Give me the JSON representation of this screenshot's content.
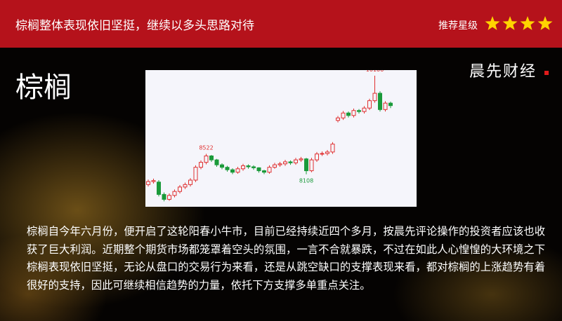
{
  "header": {
    "title": "棕榈整体表现依旧坚挺，继续以多头思路对待",
    "rating_label": "推荐星级",
    "rating": 4
  },
  "heading": "棕榈",
  "logo": "晨先财经",
  "body": "棕榈自今年六月份，便开启了这轮阳春小牛市，目前已经持续近四个多月，按晨先评论操作的投资者应该也收获了巨大利润。近期整个期货市场都笼罩着空头的氛围，一言不合就暴跌，不过在如此人心惶惶的大环境之下棕榈表现依旧坚挺，无论从盘口的交易行为来看，还是从跳空缺口的支撑表现来看，都对棕榈的上涨趋势有着很好的支持，因此可继续相信趋势的力量，依托下方支撑多单重点关注。",
  "chart_data": {
    "type": "candlestick",
    "open": [
      7900,
      7960,
      7950,
      7700,
      7600,
      7680,
      7760,
      7850,
      7900,
      7990,
      8250,
      8350,
      8480,
      8400,
      8300,
      8250,
      8200,
      8150,
      8220,
      8280,
      8260,
      8240,
      8180,
      8150,
      8250,
      8300,
      8320,
      8360,
      8340,
      8400,
      8420,
      8180,
      8400,
      8520,
      8530,
      8560,
      9200,
      9250,
      9350,
      9300,
      9400,
      9380,
      9450,
      9600,
      9750,
      9420,
      9550
    ],
    "high": [
      8000,
      8020,
      7990,
      7740,
      7720,
      7800,
      7890,
      7940,
      8030,
      8290,
      8390,
      8522,
      8500,
      8420,
      8330,
      8280,
      8230,
      8260,
      8320,
      8310,
      8290,
      8250,
      8200,
      8290,
      8340,
      8360,
      8400,
      8390,
      8440,
      8460,
      8440,
      8440,
      8560,
      8570,
      8600,
      8760,
      9290,
      9390,
      9380,
      9440,
      9430,
      9490,
      9640,
      10106,
      9790,
      9590,
      9580
    ],
    "low": [
      7860,
      7920,
      7660,
      7560,
      7570,
      7640,
      7720,
      7810,
      7860,
      7950,
      8210,
      8310,
      8360,
      8260,
      8210,
      8160,
      8110,
      8120,
      8180,
      8220,
      8200,
      8140,
      8110,
      8120,
      8220,
      8260,
      8280,
      8300,
      8300,
      8360,
      8108,
      8150,
      8360,
      8480,
      8490,
      8520,
      9160,
      9210,
      9260,
      9260,
      9340,
      9340,
      9410,
      9560,
      9380,
      9380,
      9450
    ],
    "close": [
      7960,
      7980,
      7700,
      7600,
      7680,
      7760,
      7850,
      7900,
      7990,
      8250,
      8350,
      8480,
      8400,
      8300,
      8250,
      8200,
      8150,
      8220,
      8280,
      8260,
      8240,
      8180,
      8150,
      8250,
      8300,
      8320,
      8360,
      8340,
      8400,
      8420,
      8180,
      8400,
      8520,
      8530,
      8560,
      8720,
      9250,
      9350,
      9300,
      9400,
      9380,
      9450,
      9600,
      9750,
      9420,
      9550,
      9500
    ],
    "ylim": [
      7450,
      10220
    ],
    "up_color": "#e03030",
    "down_color": "#1a9a3a"
  }
}
